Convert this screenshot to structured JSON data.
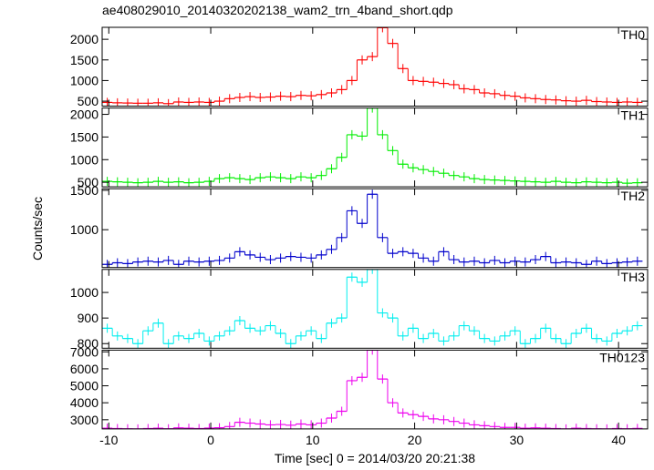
{
  "chart_data": {
    "type": "step",
    "title": "ae408029010_20140320202138_wam2_trn_4band_short.qdp",
    "xlabel": "Time [sec] 0 = 2014/03/20 20:21:38",
    "ylabel": "Counts/sec",
    "xlim": [
      -10.65,
      42.85
    ],
    "xticks": [
      -10,
      0,
      10,
      20,
      30,
      40
    ],
    "x": [
      -10.15,
      -9.15,
      -8.15,
      -7.15,
      -6.15,
      -5.15,
      -4.15,
      -3.15,
      -2.15,
      -1.15,
      -0.15,
      0.85,
      1.85,
      2.85,
      3.85,
      4.85,
      5.85,
      6.85,
      7.85,
      8.85,
      9.85,
      10.85,
      11.85,
      12.85,
      13.85,
      14.85,
      15.85,
      16.85,
      17.85,
      18.85,
      19.85,
      20.85,
      21.85,
      22.85,
      23.85,
      24.85,
      25.85,
      26.85,
      27.85,
      28.85,
      29.85,
      30.85,
      31.85,
      32.85,
      33.85,
      34.85,
      35.85,
      36.85,
      37.85,
      38.85,
      39.85,
      40.85,
      41.85
    ],
    "panels": [
      {
        "name": "TH0",
        "color": "#ff0000",
        "ylim": [
          380,
          2290
        ],
        "yticks": [
          500,
          1000,
          1500,
          2000
        ],
        "values": [
          470,
          460,
          455,
          450,
          450,
          460,
          440,
          480,
          470,
          480,
          470,
          500,
          560,
          590,
          610,
          590,
          600,
          620,
          610,
          640,
          630,
          660,
          700,
          780,
          1000,
          1500,
          1580,
          2280,
          1900,
          1290,
          1000,
          980,
          960,
          930,
          900,
          800,
          780,
          700,
          680,
          640,
          620,
          580,
          560,
          540,
          530,
          510,
          500,
          520,
          490,
          480,
          470,
          480,
          470
        ]
      },
      {
        "name": "TH1",
        "color": "#00ee00",
        "ylim": [
          400,
          2140
        ],
        "yticks": [
          500,
          1000,
          1500,
          2000
        ],
        "values": [
          520,
          510,
          500,
          490,
          500,
          520,
          500,
          510,
          490,
          500,
          520,
          580,
          600,
          580,
          560,
          600,
          620,
          600,
          580,
          620,
          600,
          650,
          800,
          1050,
          1550,
          1520,
          2140,
          1550,
          1200,
          900,
          820,
          780,
          740,
          700,
          650,
          620,
          580,
          560,
          550,
          540,
          530,
          520,
          510,
          500,
          520,
          500,
          490,
          510,
          500,
          490,
          500,
          480,
          490
        ]
      },
      {
        "name": "TH2",
        "color": "#0000cc",
        "ylim": [
          520,
          1520
        ],
        "yticks": [
          1000,
          1500
        ],
        "values": [
          560,
          580,
          570,
          590,
          600,
          590,
          610,
          560,
          600,
          590,
          600,
          610,
          640,
          720,
          680,
          650,
          620,
          640,
          660,
          650,
          640,
          680,
          750,
          900,
          1240,
          1080,
          1450,
          900,
          700,
          720,
          700,
          640,
          600,
          720,
          620,
          590,
          600,
          580,
          610,
          580,
          600,
          590,
          620,
          660,
          580,
          590,
          580,
          560,
          600,
          570,
          580,
          590,
          600
        ]
      },
      {
        "name": "TH3",
        "color": "#00eeee",
        "ylim": [
          782,
          1090
        ],
        "yticks": [
          800,
          900,
          1000
        ],
        "values": [
          860,
          830,
          820,
          800,
          850,
          880,
          800,
          830,
          820,
          840,
          810,
          830,
          850,
          890,
          860,
          850,
          870,
          840,
          800,
          830,
          850,
          820,
          880,
          900,
          1060,
          1040,
          1090,
          920,
          900,
          830,
          860,
          820,
          840,
          810,
          830,
          870,
          850,
          820,
          810,
          830,
          850,
          800,
          820,
          860,
          820,
          800,
          840,
          860,
          820,
          810,
          840,
          850,
          870
        ]
      },
      {
        "name": "TH0123",
        "color": "#ee00ee",
        "ylim": [
          2460,
          7100
        ],
        "yticks": [
          3000,
          4000,
          5000,
          6000,
          7000
        ],
        "values": [
          2500,
          2480,
          2470,
          2460,
          2480,
          2500,
          2470,
          2520,
          2500,
          2480,
          2510,
          2530,
          2600,
          2850,
          2800,
          2750,
          2700,
          2720,
          2680,
          2750,
          2700,
          2800,
          3100,
          3500,
          5300,
          5500,
          7100,
          5400,
          4000,
          3400,
          3300,
          3200,
          3050,
          3000,
          2900,
          2800,
          2700,
          2650,
          2600,
          2550,
          2550,
          2500,
          2520,
          2500,
          2480,
          2460,
          2500,
          2480,
          2470,
          2460,
          2480,
          2470,
          2490
        ]
      }
    ]
  }
}
